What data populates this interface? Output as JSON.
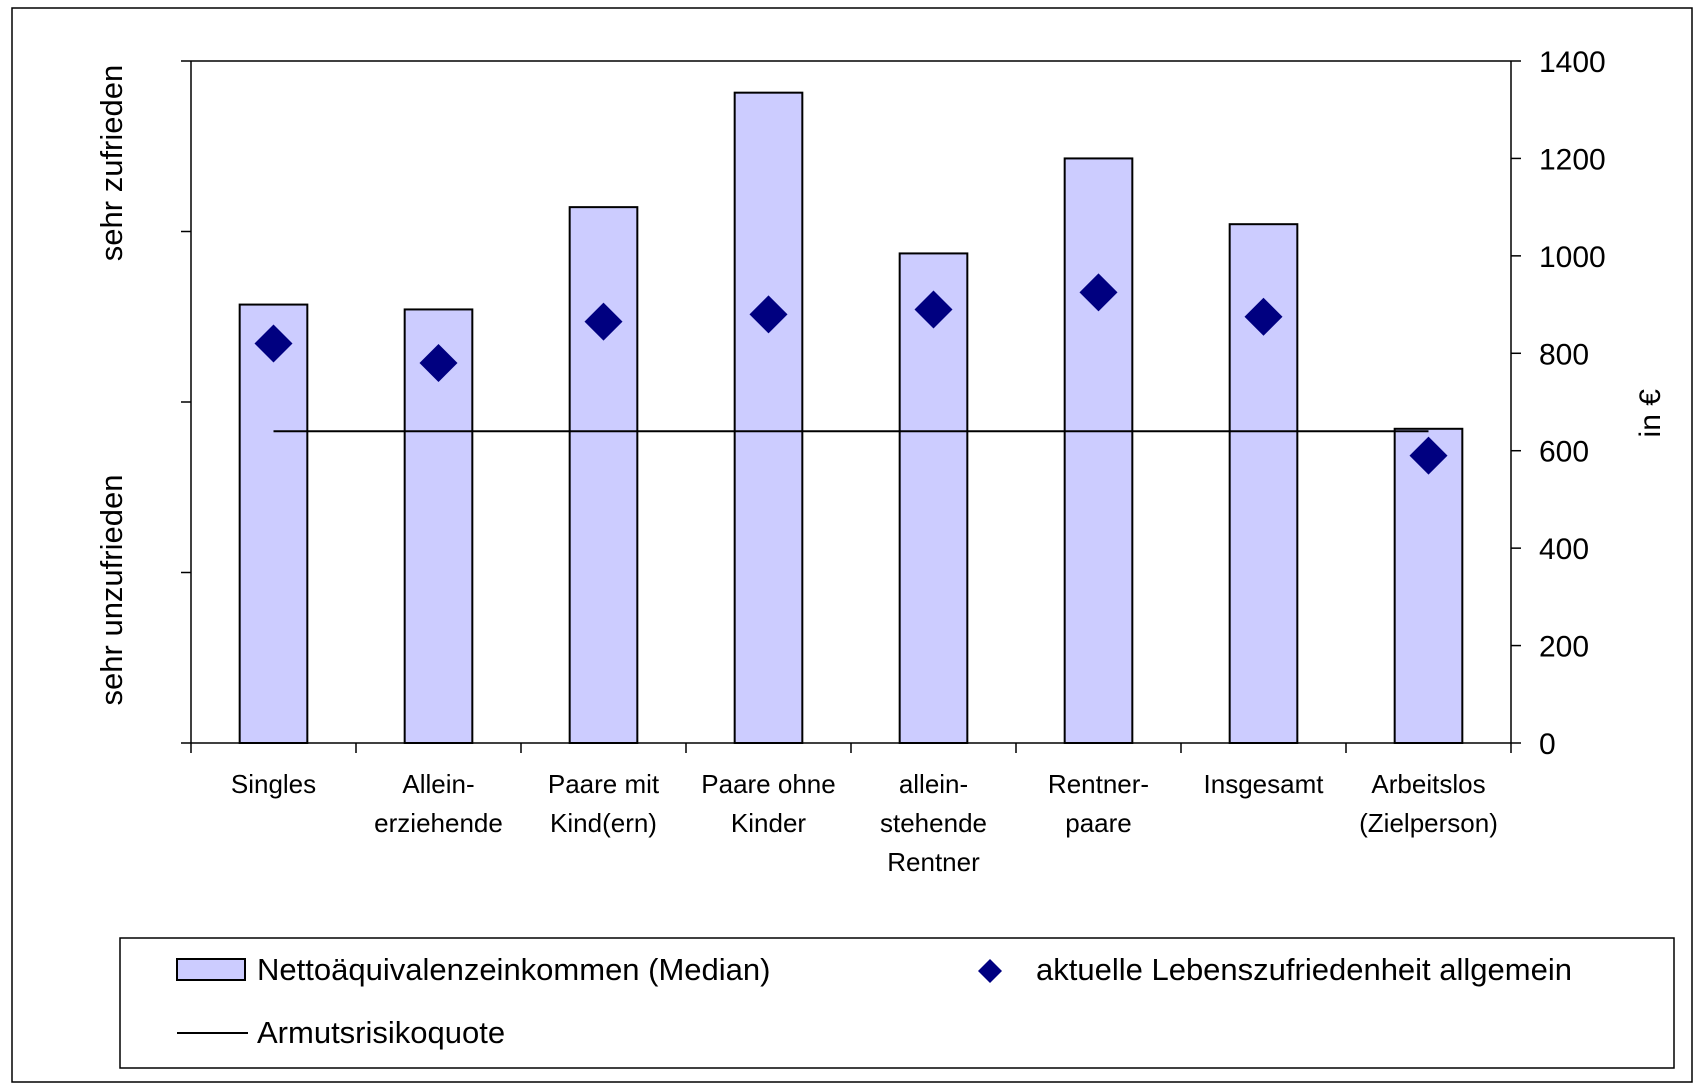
{
  "chart_data": {
    "type": "bar",
    "categories": [
      [
        "Singles"
      ],
      [
        "Allein-",
        "erziehende"
      ],
      [
        "Paare mit",
        "Kind(ern)"
      ],
      [
        "Paare ohne",
        "Kinder"
      ],
      [
        "allein-",
        "stehende",
        "Rentner"
      ],
      [
        "Rentner-",
        "paare"
      ],
      [
        "Insgesamt"
      ],
      [
        "Arbeitslos",
        "(Zielperson)"
      ]
    ],
    "y_right": {
      "label": "in €",
      "min": 0,
      "max": 1400,
      "ticks": [
        0,
        200,
        400,
        600,
        800,
        1000,
        1200,
        1400
      ]
    },
    "y_left": {
      "top_label": "sehr zufrieden",
      "bottom_label": "sehr unzufrieden",
      "min": 0,
      "max": 4,
      "ticks": [
        0,
        1,
        2,
        3,
        4
      ]
    },
    "series": [
      {
        "name": "Nettoäquivalenzeinkommen (Median)",
        "kind": "bar",
        "axis": "right",
        "color": "#ccccff",
        "values": [
          900,
          890,
          1100,
          1335,
          1005,
          1200,
          1065,
          645
        ]
      },
      {
        "name": "aktuelle Lebenszufriedenheit allgemein",
        "kind": "marker",
        "marker": "diamond",
        "axis": "right",
        "color": "#000080",
        "values": [
          820,
          780,
          865,
          880,
          890,
          925,
          875,
          590
        ]
      },
      {
        "name": "Armutsrisikoquote",
        "kind": "line",
        "axis": "right",
        "color": "#000000",
        "value": 640
      }
    ],
    "legend": {
      "position": "bottom",
      "items": [
        {
          "label": "Nettoäquivalenzeinkommen (Median)",
          "symbol": "bar"
        },
        {
          "label": "aktuelle Lebenszufriedenheit allgemein",
          "symbol": "diamond"
        },
        {
          "label": "Armutsrisikoquote",
          "symbol": "line"
        }
      ]
    },
    "grid": false
  }
}
